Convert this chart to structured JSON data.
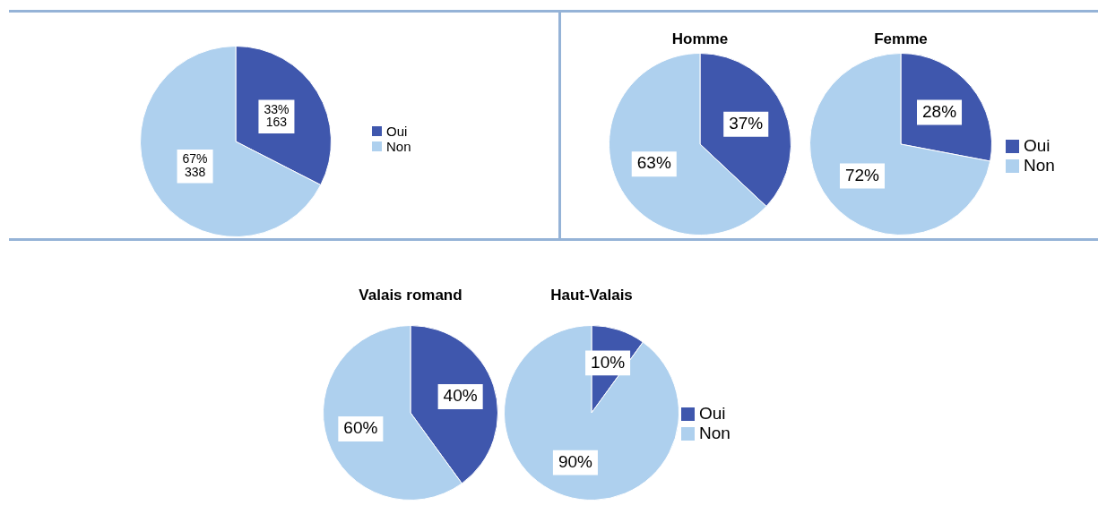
{
  "chart_data": [
    {
      "type": "pie",
      "categories": [
        "Oui",
        "Non"
      ],
      "values": [
        163,
        338
      ],
      "value_labels": [
        "33%\n163",
        "67%\n338"
      ],
      "colors": [
        "#3f57ad",
        "#aed0ee"
      ],
      "legend": "right"
    },
    {
      "type": "pie",
      "categories": [
        "Oui",
        "Non"
      ],
      "colors": [
        "#3f57ad",
        "#aed0ee"
      ],
      "legend": "right",
      "series": [
        {
          "name": "Homme",
          "values": [
            37,
            63
          ],
          "value_labels": [
            "37%",
            "63%"
          ]
        },
        {
          "name": "Femme",
          "values": [
            28,
            72
          ],
          "value_labels": [
            "28%",
            "72%"
          ]
        }
      ]
    },
    {
      "type": "pie",
      "categories": [
        "Oui",
        "Non"
      ],
      "colors": [
        "#3f57ad",
        "#aed0ee"
      ],
      "legend": "right",
      "series": [
        {
          "name": "Valais romand",
          "values": [
            40,
            60
          ],
          "value_labels": [
            "40%",
            "60%"
          ]
        },
        {
          "name": "Haut-Valais",
          "values": [
            10,
            90
          ],
          "value_labels": [
            "10%",
            "90%"
          ]
        }
      ]
    }
  ]
}
